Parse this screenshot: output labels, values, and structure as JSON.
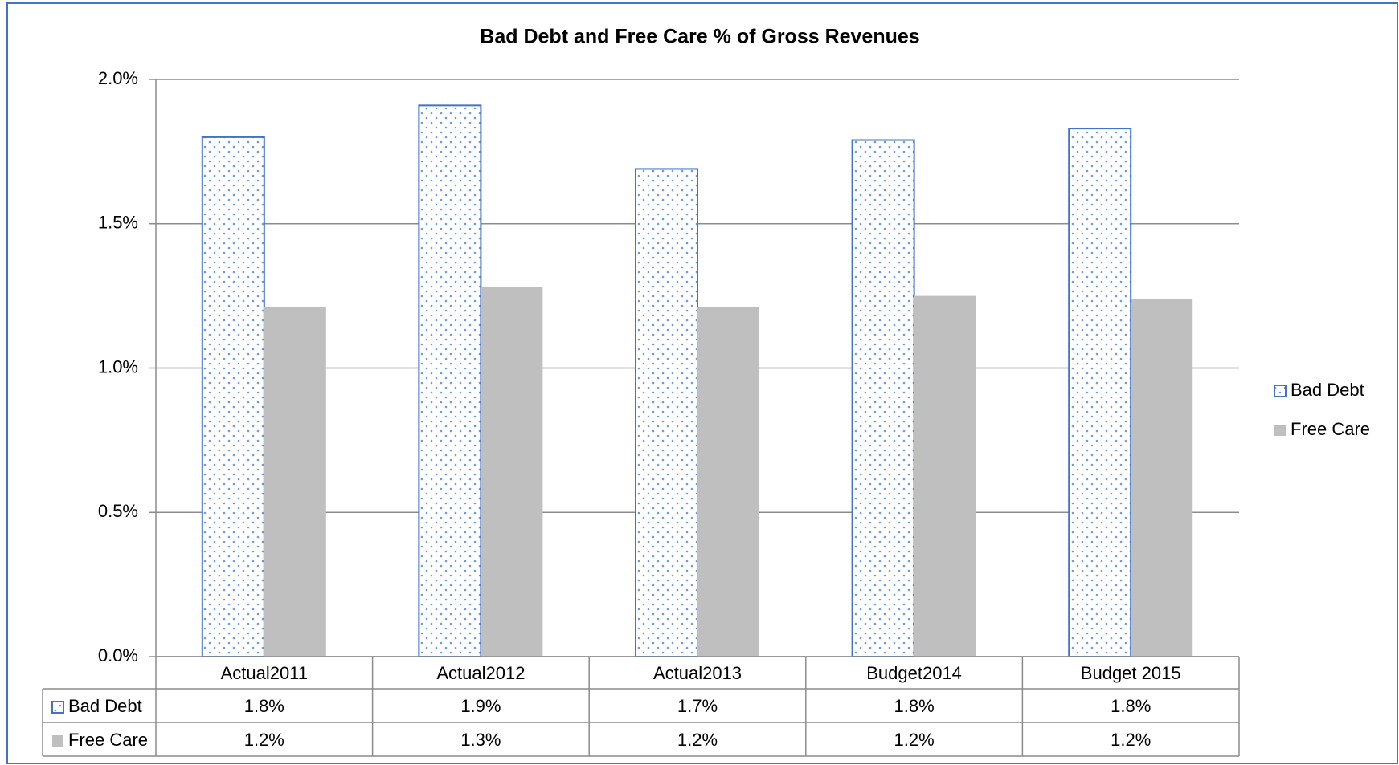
{
  "chart_data": {
    "type": "bar",
    "title": "Bad Debt and Free Care % of Gross Revenues",
    "categories": [
      "Actual2011",
      "Actual2012",
      "Actual2013",
      "Budget2014",
      "Budget 2015"
    ],
    "series": [
      {
        "name": "Bad Debt",
        "color": "#4472c4",
        "pattern": "dots",
        "values": [
          1.8,
          1.91,
          1.69,
          1.79,
          1.83
        ],
        "value_labels": [
          "1.8%",
          "1.9%",
          "1.7%",
          "1.8%",
          "1.8%"
        ]
      },
      {
        "name": "Free Care",
        "color": "#bfbfbf",
        "values": [
          1.21,
          1.28,
          1.21,
          1.25,
          1.24
        ],
        "value_labels": [
          "1.2%",
          "1.3%",
          "1.2%",
          "1.2%",
          "1.2%"
        ]
      }
    ],
    "ylim": [
      0,
      2
    ],
    "yticks": [
      {
        "value": 0,
        "label": "0.0%"
      },
      {
        "value": 0.5,
        "label": "0.5%"
      },
      {
        "value": 1,
        "label": "1.0%"
      },
      {
        "value": 1.5,
        "label": "1.5%"
      },
      {
        "value": 2,
        "label": "2.0%"
      }
    ],
    "grid": true,
    "legend": "right"
  }
}
